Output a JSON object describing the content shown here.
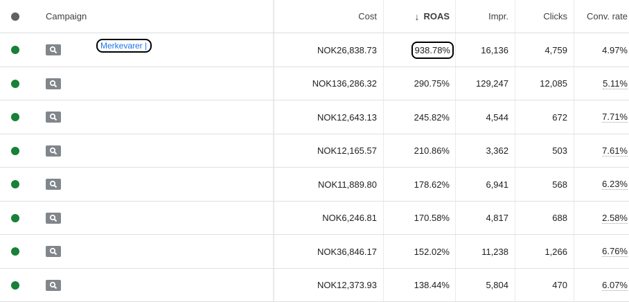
{
  "header": {
    "campaign": "Campaign",
    "cost": "Cost",
    "roas": "ROAS",
    "impr": "Impr.",
    "clicks": "Clicks",
    "conv_rate": "Conv. rate",
    "sort_icon": "arrow-down-icon"
  },
  "colors": {
    "status_enabled": "#188038",
    "link": "#1a73e8"
  },
  "rows": [
    {
      "campaign": "Merkevarer |",
      "cost": "NOK26,838.73",
      "roas": "938.78%",
      "impr": "16,136",
      "clicks": "4,759",
      "conv_rate": "4.97%"
    },
    {
      "campaign": "",
      "cost": "NOK136,286.32",
      "roas": "290.75%",
      "impr": "129,247",
      "clicks": "12,085",
      "conv_rate": "5.11%"
    },
    {
      "campaign": "",
      "cost": "NOK12,643.13",
      "roas": "245.82%",
      "impr": "4,544",
      "clicks": "672",
      "conv_rate": "7.71%"
    },
    {
      "campaign": "",
      "cost": "NOK12,165.57",
      "roas": "210.86%",
      "impr": "3,362",
      "clicks": "503",
      "conv_rate": "7.61%"
    },
    {
      "campaign": "",
      "cost": "NOK11,889.80",
      "roas": "178.62%",
      "impr": "6,941",
      "clicks": "568",
      "conv_rate": "6.23%"
    },
    {
      "campaign": "",
      "cost": "NOK6,246.81",
      "roas": "170.58%",
      "impr": "4,817",
      "clicks": "688",
      "conv_rate": "2.58%"
    },
    {
      "campaign": "",
      "cost": "NOK36,846.17",
      "roas": "152.02%",
      "impr": "11,238",
      "clicks": "1,266",
      "conv_rate": "6.76%"
    },
    {
      "campaign": "",
      "cost": "NOK12,373.93",
      "roas": "138.44%",
      "impr": "5,804",
      "clicks": "470",
      "conv_rate": "6.07%"
    }
  ]
}
